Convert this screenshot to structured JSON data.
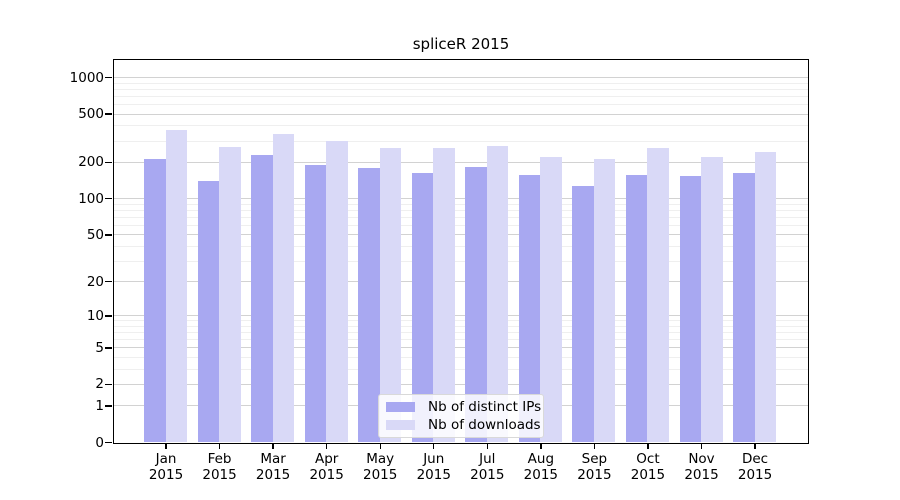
{
  "title": "spliceR 2015",
  "colors": {
    "ips": "#a8a8f1",
    "downloads": "#d9d9f7",
    "grid_major": "#d2d2d2",
    "grid_minor": "#efefef",
    "axis": "#000000",
    "legend_border": "#d9d9d9"
  },
  "legend": {
    "entries": [
      {
        "label": "Nb of distinct IPs",
        "series": "ips"
      },
      {
        "label": "Nb of downloads",
        "series": "downloads"
      }
    ]
  },
  "y_axis": {
    "tick_labels": [
      "0",
      "1",
      "2",
      "5",
      "10",
      "20",
      "50",
      "100",
      "200",
      "500",
      "1000"
    ]
  },
  "chart_data": {
    "type": "bar",
    "title": "spliceR 2015",
    "categories": [
      "Jan 2015",
      "Feb 2015",
      "Mar 2015",
      "Apr 2015",
      "May 2015",
      "Jun 2015",
      "Jul 2015",
      "Aug 2015",
      "Sep 2015",
      "Oct 2015",
      "Nov 2015",
      "Dec 2015"
    ],
    "series": [
      {
        "name": "Nb of distinct IPs",
        "key": "ips",
        "values": [
          210,
          138,
          227,
          190,
          177,
          162,
          182,
          155,
          126,
          156,
          152,
          163
        ]
      },
      {
        "name": "Nb of downloads",
        "key": "downloads",
        "values": [
          370,
          265,
          340,
          295,
          260,
          260,
          270,
          220,
          210,
          260,
          218,
          242
        ]
      }
    ],
    "yscale": "log1p",
    "y_ticks": [
      0,
      1,
      2,
      5,
      10,
      20,
      50,
      100,
      200,
      500,
      1000
    ],
    "y_minor_ticks": [
      3,
      4,
      6,
      7,
      8,
      9,
      30,
      40,
      60,
      70,
      80,
      90,
      300,
      400,
      600,
      700,
      800,
      900
    ],
    "ylim": [
      0,
      1450
    ],
    "grid": "on",
    "legend_position": "lower center"
  }
}
